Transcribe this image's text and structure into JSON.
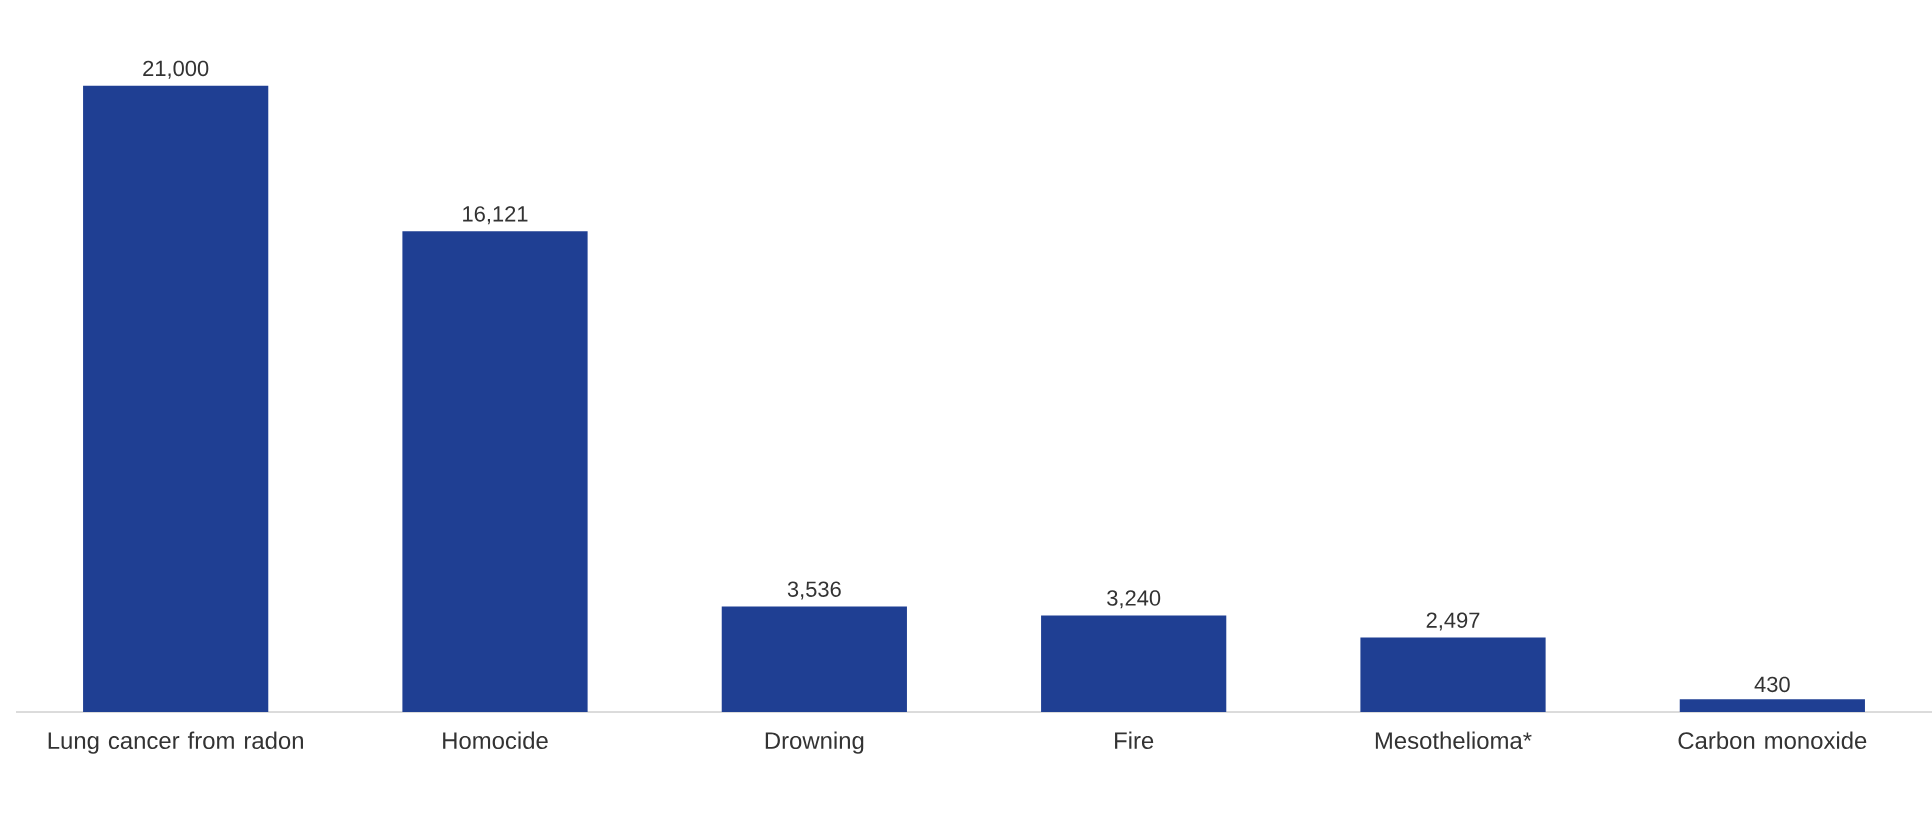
{
  "chart_data": {
    "type": "bar",
    "categories": [
      "Lung cancer from radon",
      "Homocide",
      "Drowning",
      "Fire",
      "Mesothelioma*",
      "Carbon monoxide"
    ],
    "values": [
      21000,
      16121,
      3536,
      3240,
      2497,
      430
    ],
    "value_labels": [
      "21,000",
      "16,121",
      "3,536",
      "3,240",
      "2,497",
      "430"
    ],
    "color": "#1f3f93"
  }
}
